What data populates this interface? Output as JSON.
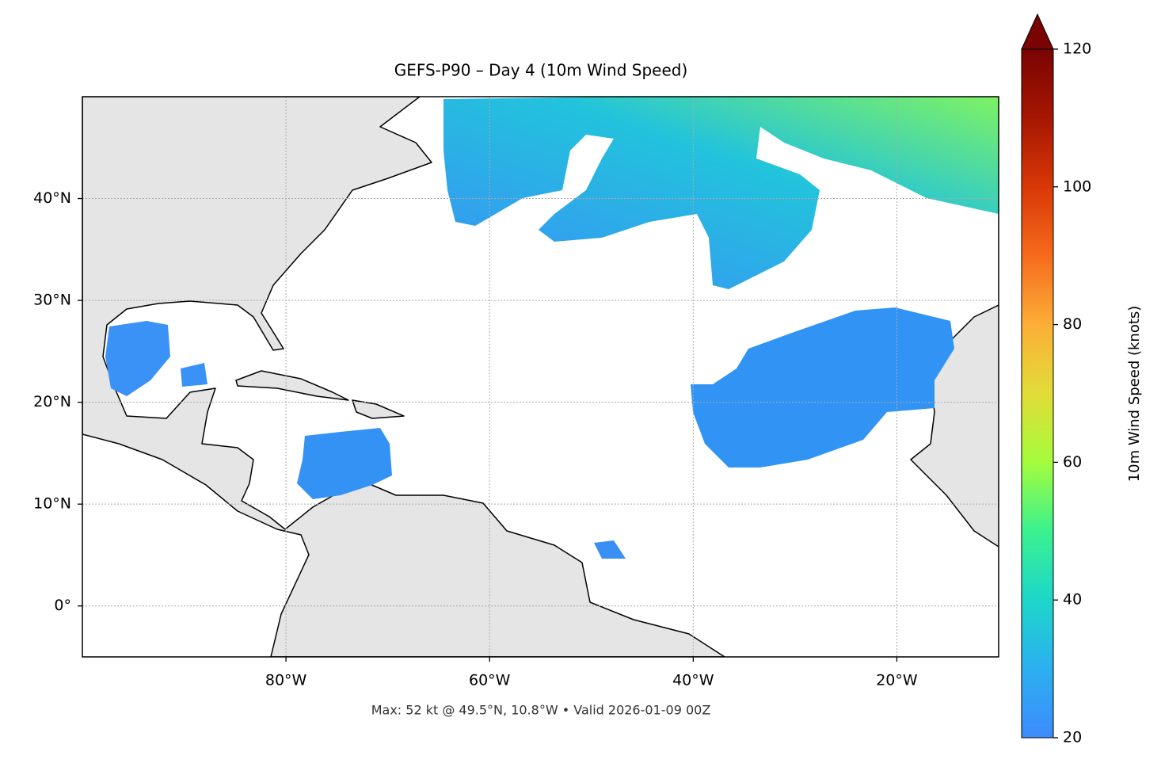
{
  "chart_data": {
    "type": "map",
    "title": "GEFS-P90 – Day 4 (10m Wind Speed)",
    "annotation": "Max: 52 kt @ 49.5°N, 10.8°W • Valid 2026-01-09 00Z",
    "xlim": [
      -100,
      -10
    ],
    "ylim": [
      -5,
      50
    ],
    "xticks": [
      {
        "value": -80,
        "label": "80°W"
      },
      {
        "value": -60,
        "label": "60°W"
      },
      {
        "value": -40,
        "label": "40°W"
      },
      {
        "value": -20,
        "label": "20°W"
      }
    ],
    "yticks": [
      {
        "value": 0,
        "label": "0°"
      },
      {
        "value": 10,
        "label": "10°N"
      },
      {
        "value": 20,
        "label": "20°N"
      },
      {
        "value": 30,
        "label": "30°N"
      },
      {
        "value": 40,
        "label": "40°N"
      }
    ],
    "grid": true,
    "colorbar": {
      "label": "10m Wind Speed (knots)",
      "lim": [
        20,
        120
      ],
      "ticks": [
        20,
        40,
        60,
        80,
        100,
        120
      ],
      "extend": "max"
    }
  }
}
